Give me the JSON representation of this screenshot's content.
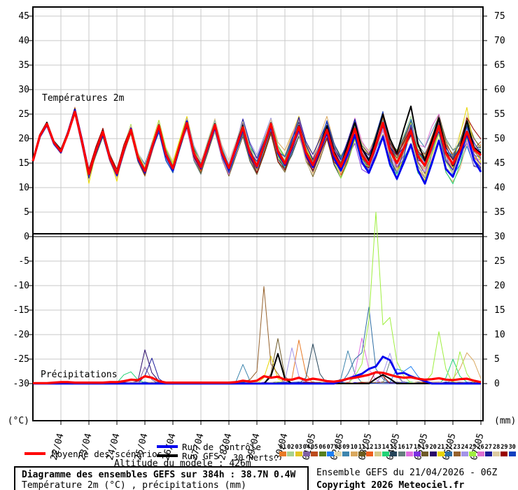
{
  "chart": {
    "temp_section_label": "Températures 2m",
    "precip_section_label": "Précipitations",
    "left_unit": "(°C)",
    "right_unit": "(mm)",
    "left_ticks": [
      45,
      40,
      35,
      30,
      25,
      20,
      15,
      10,
      5,
      0,
      -5,
      -10,
      -15,
      -20,
      -25,
      -30
    ],
    "right_ticks": [
      75,
      70,
      65,
      60,
      55,
      50,
      45,
      40,
      35,
      30,
      25,
      20,
      15,
      10,
      5,
      0
    ],
    "dates": [
      "22/04",
      "23/04",
      "24/04",
      "25/04",
      "26/04",
      "27/04",
      "28/04",
      "29/04",
      "30/04",
      "01/05",
      "02/05",
      "03/05",
      "04/05",
      "05/05",
      "06/05",
      "07/05"
    ],
    "grid_color": "#c9c9c9",
    "frame_color": "#000000"
  },
  "legend": {
    "mean_label": "Moyenne des scénarios",
    "control_label": "Run de contrôle",
    "gfs_label": "Run GFS",
    "perts_label": "30 Perts.",
    "altitude_label": "Altitude du modele : 426m",
    "mean_color": "#ff0000",
    "control_color": "#0000ee",
    "gfs_color": "#000000"
  },
  "perturbations": {
    "numbers": [
      "01",
      "02",
      "03",
      "04",
      "05",
      "06",
      "07",
      "08",
      "09",
      "10",
      "11",
      "12",
      "13",
      "14",
      "15",
      "16",
      "17",
      "18",
      "19",
      "20",
      "21",
      "22",
      "23",
      "24",
      "25",
      "26",
      "27",
      "28",
      "29",
      "30"
    ],
    "colors": [
      "#E87A25",
      "#A7D28F",
      "#E3C421",
      "#7E5FA4",
      "#BC4B1C",
      "#56801F",
      "#1C7EF2",
      "#E2D8AE",
      "#3E85AD",
      "#D9A85F",
      "#6B5A1E",
      "#EE5F1E",
      "#D5C98A",
      "#21D375",
      "#25455A",
      "#657D7D",
      "#E06EE0",
      "#7B2FE0",
      "#6F5A28",
      "#2A0A6A",
      "#E8D500",
      "#2E6DA4",
      "#96622D",
      "#A394E8",
      "#9FEF3F",
      "#DE6FD0",
      "#1A1A99",
      "#DCCBA0",
      "#990000",
      "#1040C0"
    ]
  },
  "footer": {
    "title": "Diagramme des ensembles GEFS sur 384h : 38.7N 0.4W",
    "subtitle": "Température 2m (°C) , précipitations (mm)",
    "run_info": "Ensemble GEFS du 21/04/2026 - 06Z",
    "copyright": "Copyright 2026 Meteociel.fr"
  },
  "chart_data": {
    "type": "line",
    "title": "Diagramme des ensembles GEFS sur 384h : 38.7N 0.4W",
    "x_start": "21/04 06Z",
    "x_step_hours": 6,
    "x_total_hours": 384,
    "temp_axis_range_c": [
      -30,
      47.5
    ],
    "precip_axis_range_mm": [
      0,
      77.5
    ],
    "series": {
      "mean_temp": [
        15.4,
        20.6,
        23.0,
        19.2,
        17.4,
        21.0,
        25.5,
        19.5,
        12.8,
        17.5,
        21.4,
        16.0,
        12.9,
        17.8,
        21.8,
        16.2,
        13.4,
        18.2,
        22.6,
        16.8,
        13.9,
        18.8,
        23.2,
        17.0,
        14.2,
        18.5,
        22.8,
        17.2,
        14.0,
        18.2,
        22.3,
        17.0,
        14.4,
        18.6,
        23.0,
        17.4,
        14.9,
        18.4,
        22.4,
        17.2,
        14.6,
        18.0,
        21.8,
        16.8,
        14.3,
        17.8,
        22.0,
        16.6,
        14.7,
        18.6,
        23.2,
        17.6,
        15.0,
        18.0,
        21.6,
        16.4,
        14.5,
        18.4,
        22.6,
        17.0,
        14.8,
        17.6,
        21.4,
        17.8,
        16.6
      ],
      "control_temp": [
        15.4,
        20.4,
        22.8,
        19.0,
        17.2,
        21.2,
        25.8,
        19.8,
        13.0,
        17.2,
        21.0,
        15.8,
        12.6,
        17.5,
        22.0,
        16.0,
        13.2,
        18.0,
        22.2,
        16.5,
        13.6,
        18.5,
        23.5,
        16.8,
        14.0,
        18.2,
        22.4,
        17.0,
        13.8,
        18.0,
        22.0,
        16.6,
        14.2,
        18.2,
        22.6,
        17.0,
        14.6,
        18.0,
        22.0,
        16.8,
        14.2,
        17.6,
        21.2,
        16.0,
        13.5,
        17.0,
        20.8,
        15.2,
        13.0,
        16.5,
        20.4,
        14.8,
        11.8,
        15.2,
        18.8,
        13.6,
        10.8,
        15.0,
        19.6,
        13.8,
        12.2,
        16.2,
        21.2,
        15.6,
        13.2
      ],
      "gfs_temp": [
        15.4,
        20.8,
        23.3,
        19.4,
        17.6,
        21.3,
        26.0,
        19.8,
        13.0,
        17.8,
        21.6,
        16.2,
        13.1,
        18.0,
        22.0,
        16.4,
        13.6,
        18.4,
        22.8,
        17.0,
        14.1,
        19.0,
        23.4,
        17.2,
        14.4,
        18.8,
        23.0,
        17.4,
        14.2,
        18.4,
        22.6,
        17.2,
        14.6,
        18.8,
        23.2,
        17.6,
        15.1,
        18.6,
        22.6,
        17.4,
        14.8,
        18.2,
        22.6,
        17.4,
        14.5,
        19.0,
        23.2,
        18.0,
        15.5,
        20.0,
        25.0,
        20.0,
        17.0,
        22.0,
        26.6,
        19.0,
        15.5,
        19.5,
        24.2,
        17.5,
        14.5,
        18.0,
        23.6,
        18.2,
        17.0
      ],
      "mean_precip": [
        0.1,
        0.1,
        0.1,
        0.2,
        0.3,
        0.3,
        0.2,
        0.2,
        0.2,
        0.2,
        0.2,
        0.3,
        0.3,
        0.5,
        0.8,
        0.7,
        1.5,
        1.2,
        0.5,
        0.2,
        0.2,
        0.2,
        0.2,
        0.2,
        0.2,
        0.2,
        0.2,
        0.2,
        0.2,
        0.3,
        0.6,
        0.4,
        0.6,
        1.5,
        1.2,
        1.4,
        0.8,
        0.8,
        1.2,
        0.7,
        1.0,
        0.8,
        0.5,
        0.4,
        0.6,
        1.0,
        1.2,
        1.5,
        1.8,
        2.3,
        2.2,
        1.8,
        1.4,
        1.2,
        1.3,
        1.0,
        0.8,
        0.9,
        1.1,
        0.8,
        0.7,
        0.9,
        1.0,
        0.6,
        0.3
      ],
      "control_precip_points": [
        [
          44,
          0.5
        ],
        [
          45,
          1.0
        ],
        [
          46,
          1.5
        ],
        [
          47,
          2.0
        ],
        [
          48,
          3.0
        ],
        [
          49,
          3.5
        ],
        [
          50,
          5.5
        ],
        [
          51,
          4.8
        ],
        [
          52,
          2.0
        ],
        [
          53,
          2.2
        ],
        [
          54,
          1.5
        ],
        [
          55,
          1.0
        ],
        [
          56,
          0.5
        ]
      ],
      "gfs_precip_points": [
        [
          34,
          1.5
        ],
        [
          35,
          6.1
        ],
        [
          36,
          1.0
        ],
        [
          49,
          1.0
        ],
        [
          50,
          1.8
        ],
        [
          51,
          1.0
        ]
      ]
    },
    "member_temp_spread": [
      0.15,
      0.3,
      0.45,
      0.5,
      0.6,
      0.7,
      0.8,
      0.9,
      1.0,
      1.05,
      1.1,
      1.15,
      1.2,
      1.25,
      1.3,
      1.35,
      1.4,
      1.45,
      1.5,
      1.55,
      1.6,
      1.65,
      1.7,
      1.75,
      1.8,
      1.85,
      1.9,
      1.95,
      2.0,
      2.05,
      2.1,
      2.15,
      2.2,
      2.25,
      2.3,
      2.35,
      2.4,
      2.5,
      2.55,
      2.6,
      2.7,
      2.75,
      2.8,
      2.9,
      3.0,
      3.05,
      3.1,
      3.2,
      3.25,
      3.3,
      3.4,
      3.45,
      3.5,
      3.6,
      3.65,
      3.7,
      3.8,
      3.85,
      3.9,
      4.0,
      4.0,
      4.1,
      4.1,
      4.2,
      4.2
    ],
    "member_temp_spikes": [
      {
        "member": 21,
        "points": [
          [
            60,
            1.5
          ],
          [
            61,
            5.0
          ],
          [
            62,
            4.5
          ]
        ]
      },
      {
        "member": 30,
        "points": [
          [
            51,
            -2.0
          ],
          [
            52,
            -3.5
          ],
          [
            53,
            -2.5
          ]
        ]
      },
      {
        "member": 21,
        "points": [
          [
            8,
            -1.8
          ],
          [
            12,
            -2.0
          ]
        ]
      }
    ],
    "member_precip_spikes": [
      {
        "member": 20,
        "points": [
          [
            15,
            0.5
          ],
          [
            16,
            6.9
          ],
          [
            17,
            2.2
          ],
          [
            18,
            0.5
          ]
        ]
      },
      {
        "member": 27,
        "points": [
          [
            16,
            1.6
          ],
          [
            17,
            5.2
          ],
          [
            18,
            1.0
          ]
        ]
      },
      {
        "member": 4,
        "points": [
          [
            16,
            3.4
          ],
          [
            17,
            0.8
          ]
        ]
      },
      {
        "member": 14,
        "points": [
          [
            13,
            1.8
          ],
          [
            14,
            2.4
          ],
          [
            15,
            0.8
          ],
          [
            59,
            1.2
          ],
          [
            60,
            5.0
          ],
          [
            61,
            1.5
          ]
        ]
      },
      {
        "member": 23,
        "points": [
          [
            31,
            0.8
          ],
          [
            32,
            2.5
          ],
          [
            33,
            19.8
          ],
          [
            34,
            4.0
          ],
          [
            35,
            2.0
          ]
        ]
      },
      {
        "member": 19,
        "points": [
          [
            34,
            2.0
          ],
          [
            35,
            9.2
          ],
          [
            36,
            1.5
          ]
        ]
      },
      {
        "member": 21,
        "points": [
          [
            33,
            1.2
          ],
          [
            34,
            5.6
          ],
          [
            35,
            1.0
          ]
        ]
      },
      {
        "member": 9,
        "points": [
          [
            29,
            0.4
          ],
          [
            30,
            3.9
          ],
          [
            31,
            0.6
          ],
          [
            44,
            1.0
          ],
          [
            45,
            6.7
          ],
          [
            46,
            2.0
          ]
        ]
      },
      {
        "member": 1,
        "points": [
          [
            37,
            1.0
          ],
          [
            38,
            8.9
          ],
          [
            39,
            2.0
          ]
        ]
      },
      {
        "member": 24,
        "points": [
          [
            36,
            0.6
          ],
          [
            37,
            7.3
          ],
          [
            38,
            1.5
          ],
          [
            50,
            2.0
          ],
          [
            51,
            6.2
          ],
          [
            52,
            1.5
          ]
        ]
      },
      {
        "member": 15,
        "points": [
          [
            39,
            1.2
          ],
          [
            40,
            8.1
          ],
          [
            41,
            2.0
          ]
        ]
      },
      {
        "member": 22,
        "points": [
          [
            45,
            2.0
          ],
          [
            46,
            5.0
          ],
          [
            47,
            6.3
          ],
          [
            48,
            15.6
          ],
          [
            49,
            3.0
          ],
          [
            50,
            1.0
          ]
        ]
      },
      {
        "member": 17,
        "points": [
          [
            46,
            2.2
          ],
          [
            47,
            9.3
          ],
          [
            48,
            3.0
          ],
          [
            49,
            0.8
          ]
        ]
      },
      {
        "member": 25,
        "points": [
          [
            46,
            1.5
          ],
          [
            47,
            4.0
          ],
          [
            48,
            13.0
          ],
          [
            49,
            35.0
          ],
          [
            50,
            12.0
          ],
          [
            51,
            13.5
          ],
          [
            52,
            4.5
          ],
          [
            53,
            1.5
          ],
          [
            57,
            2.0
          ],
          [
            58,
            10.6
          ],
          [
            59,
            3.0
          ],
          [
            61,
            6.5
          ],
          [
            62,
            2.0
          ]
        ]
      },
      {
        "member": 16,
        "points": [
          [
            51,
            4.5
          ],
          [
            52,
            2.0
          ]
        ]
      },
      {
        "member": 10,
        "points": [
          [
            60,
            1.0
          ],
          [
            61,
            3.0
          ],
          [
            62,
            6.3
          ],
          [
            63,
            4.6
          ],
          [
            64,
            1.0
          ]
        ]
      },
      {
        "member": 7,
        "points": [
          [
            52,
            3.0
          ],
          [
            53,
            2.5
          ],
          [
            54,
            3.5
          ],
          [
            55,
            1.5
          ]
        ]
      },
      {
        "member": 29,
        "points": [
          [
            49,
            2.5
          ],
          [
            50,
            1.5
          ]
        ]
      }
    ]
  }
}
